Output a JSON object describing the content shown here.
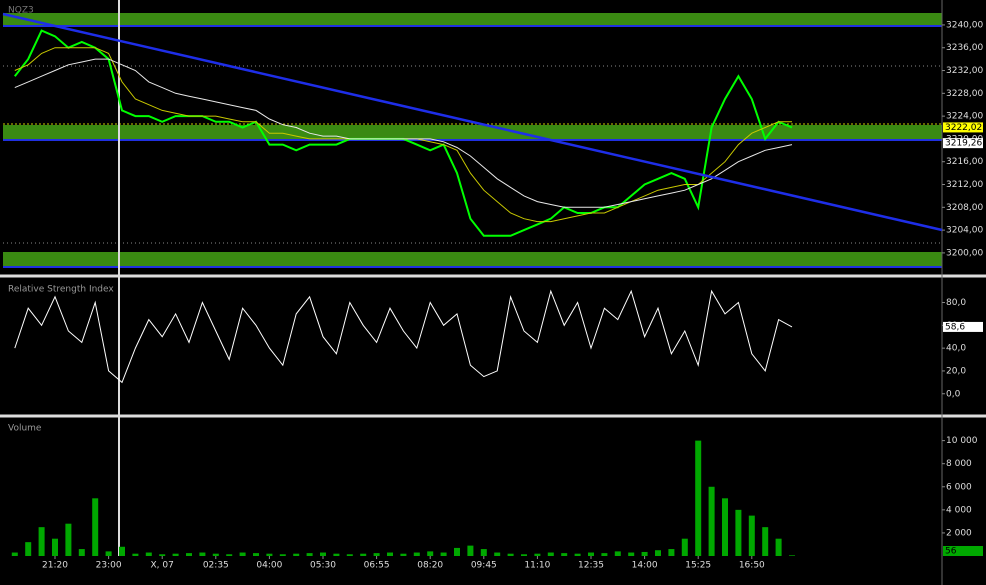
{
  "chart_data": [
    {
      "type": "line",
      "title": "NQZ3",
      "series": [
        {
          "color": "#00ff00",
          "values": [
            3231,
            3234,
            3239,
            3238,
            3236,
            3237,
            3236,
            3234,
            3225,
            3224,
            3224,
            3223,
            3224,
            3224,
            3224,
            3223,
            3223,
            3222,
            3223,
            3219,
            3219,
            3218,
            3219,
            3219,
            3219,
            3220,
            3220,
            3220,
            3220,
            3220,
            3219,
            3218,
            3219,
            3214,
            3206,
            3203,
            3203,
            3203,
            3204,
            3205,
            3206,
            3208,
            3207,
            3207,
            3208,
            3208,
            3210,
            3212,
            3213,
            3214,
            3213,
            3208,
            3222,
            3227,
            3231,
            3227,
            3220,
            3223,
            3222
          ]
        },
        {
          "color": "#c8c800",
          "values": [
            3232,
            3233,
            3235,
            3236,
            3236,
            3236,
            3236,
            3235,
            3230,
            3227,
            3226,
            3225,
            3224.5,
            3224,
            3224,
            3224,
            3223.5,
            3223,
            3223,
            3221,
            3221,
            3220.5,
            3220,
            3220,
            3220,
            3220,
            3220,
            3220,
            3220,
            3220,
            3220,
            3219.5,
            3219,
            3218,
            3214,
            3211,
            3209,
            3207,
            3206,
            3205.5,
            3205.5,
            3206,
            3206.5,
            3207,
            3207,
            3208,
            3209,
            3210,
            3211,
            3211.5,
            3212,
            3212,
            3214,
            3216,
            3219,
            3221,
            3222,
            3223,
            3223
          ]
        },
        {
          "color": "#e8e8e8",
          "values": [
            3229,
            3230,
            3231,
            3232,
            3233,
            3233.5,
            3234,
            3234,
            3233,
            3232,
            3230,
            3229,
            3228,
            3227.5,
            3227,
            3226.5,
            3226,
            3225.5,
            3225,
            3223.5,
            3222.5,
            3222,
            3221,
            3220.5,
            3220.5,
            3220,
            3220,
            3220,
            3220,
            3220,
            3220,
            3220,
            3219.5,
            3218.5,
            3217,
            3215,
            3213,
            3211.5,
            3210,
            3209,
            3208.5,
            3208,
            3208,
            3208,
            3208,
            3208.5,
            3209,
            3209.5,
            3210,
            3210.5,
            3211,
            3212,
            3213,
            3214.5,
            3216,
            3217,
            3218,
            3218.5,
            3219
          ]
        }
      ],
      "ylim": [
        3197,
        3243.5
      ],
      "yticks": [
        {
          "value": 3200,
          "label": "3200,00"
        },
        {
          "value": 3204,
          "label": "3204,00"
        },
        {
          "value": 3208,
          "label": "3208,00"
        },
        {
          "value": 3212,
          "label": "3212,00"
        },
        {
          "value": 3216,
          "label": "3216,00"
        },
        {
          "value": 3220,
          "label": "3220,00"
        },
        {
          "value": 3224,
          "label": "3224,00"
        },
        {
          "value": 3228,
          "label": "3228,00"
        },
        {
          "value": 3232,
          "label": "3232,00"
        },
        {
          "value": 3236,
          "label": "3236,00"
        },
        {
          "value": 3240,
          "label": "3240,00"
        }
      ],
      "price_markers": [
        {
          "value": 3222.02,
          "label": "3222,02",
          "color": "#ffff00"
        },
        {
          "value": 3219.26,
          "label": "3219,26",
          "color": "#ffffff"
        }
      ]
    },
    {
      "type": "line",
      "title": "Relative Strength Index",
      "series": [
        {
          "color": "#ffffff",
          "values": [
            40,
            75,
            60,
            85,
            55,
            45,
            80,
            20,
            10,
            40,
            65,
            50,
            70,
            45,
            80,
            55,
            30,
            75,
            60,
            40,
            25,
            70,
            85,
            50,
            35,
            80,
            60,
            45,
            75,
            55,
            40,
            80,
            60,
            70,
            25,
            15,
            20,
            85,
            55,
            45,
            90,
            60,
            80,
            40,
            75,
            65,
            90,
            50,
            75,
            35,
            55,
            25,
            90,
            70,
            80,
            35,
            20,
            65,
            58.6
          ]
        }
      ],
      "ylim": [
        -16,
        98
      ],
      "yticks": [
        {
          "value": 0,
          "label": "0,0"
        },
        {
          "value": 20,
          "label": "20,0"
        },
        {
          "value": 40,
          "label": "40,0"
        },
        {
          "value": 60,
          "label": "60,0"
        },
        {
          "value": 80,
          "label": "80,0"
        }
      ],
      "price_markers": [
        {
          "value": 58.6,
          "label": "58,6",
          "color": "#ffffff"
        }
      ]
    },
    {
      "type": "bar",
      "title": "Volume",
      "categories": [
        null,
        null,
        null,
        "21:20",
        null,
        null,
        null,
        "23:00",
        null,
        null,
        null,
        "X, 07",
        null,
        null,
        null,
        "02:35",
        null,
        null,
        null,
        "04:00",
        null,
        null,
        null,
        "05:30",
        null,
        null,
        null,
        "06:55",
        null,
        null,
        null,
        "08:20",
        null,
        null,
        null,
        "09:45",
        null,
        null,
        null,
        "11:10",
        null,
        null,
        null,
        "12:35",
        null,
        null,
        null,
        "14:00",
        null,
        null,
        null,
        "15:25",
        null,
        null,
        null,
        "16:50",
        null,
        null,
        null
      ],
      "values": [
        300,
        1200,
        2500,
        1500,
        2800,
        600,
        5000,
        400,
        800,
        200,
        300,
        150,
        200,
        250,
        300,
        200,
        150,
        300,
        250,
        200,
        150,
        200,
        250,
        300,
        200,
        150,
        200,
        250,
        300,
        200,
        300,
        400,
        300,
        700,
        900,
        600,
        300,
        200,
        150,
        200,
        300,
        250,
        200,
        300,
        250,
        400,
        300,
        350,
        500,
        600,
        1500,
        10000,
        6000,
        5000,
        4000,
        3500,
        2500,
        1500,
        56
      ],
      "color": "#00a800",
      "ylim": [
        0,
        11700
      ],
      "yticks": [
        {
          "value": 2000,
          "label": "2 000"
        },
        {
          "value": 4000,
          "label": "4 000"
        },
        {
          "value": 6000,
          "label": "6 000"
        },
        {
          "value": 8000,
          "label": "8 000"
        },
        {
          "value": 10000,
          "label": "10 000"
        }
      ],
      "price_markers": [
        {
          "value": 56,
          "label": "56",
          "color": "#00a800"
        }
      ]
    }
  ]
}
